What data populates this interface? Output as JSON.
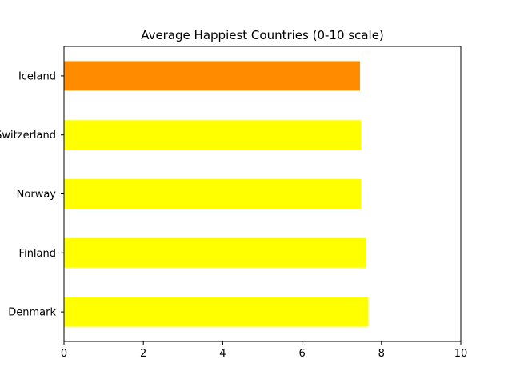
{
  "chart_data": {
    "type": "bar",
    "orientation": "horizontal",
    "title": "Average Happiest Countries (0-10 scale)",
    "xlabel": "",
    "ylabel": "",
    "categories": [
      "Denmark",
      "Finland",
      "Norway",
      "Switzerland",
      "Iceland"
    ],
    "values": [
      7.67,
      7.62,
      7.48,
      7.48,
      7.46
    ],
    "bar_colors": [
      "#ffff00",
      "#ffff00",
      "#ffff00",
      "#ffff00",
      "#ff8c00"
    ],
    "xlim": [
      0,
      10
    ],
    "xticks": [
      0,
      2,
      4,
      6,
      8,
      10
    ],
    "xtick_labels": [
      "0",
      "2",
      "4",
      "6",
      "8",
      "10"
    ],
    "grid": false,
    "legend": "none"
  }
}
